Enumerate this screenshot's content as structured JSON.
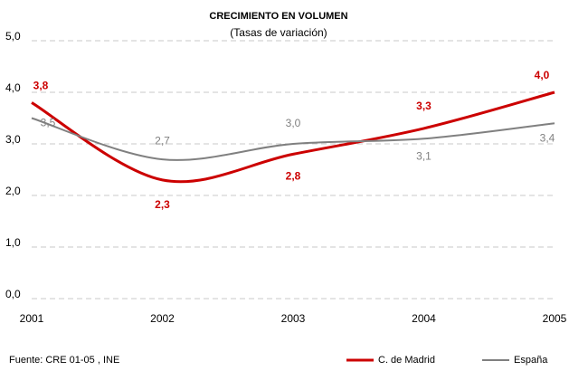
{
  "chart_data": {
    "type": "line",
    "title": "CRECIMIENTO EN VOLUMEN",
    "subtitle": "(Tasas de variación)",
    "x": [
      2001,
      2002,
      2003,
      2004,
      2005
    ],
    "series": [
      {
        "name": "C. de Madrid",
        "color": "#cc0000",
        "values": [
          3.8,
          2.3,
          2.8,
          3.3,
          4.0
        ],
        "value_labels": [
          "3,8",
          "2,3",
          "2,8",
          "3,3",
          "4,0"
        ]
      },
      {
        "name": "España",
        "color": "#808080",
        "values": [
          3.5,
          2.7,
          3.0,
          3.1,
          3.4
        ],
        "value_labels": [
          "3,5",
          "2,7",
          "3,0",
          "3,1",
          "3,4"
        ]
      }
    ],
    "xlim": [
      2001,
      2005
    ],
    "xticks": [
      2001,
      2002,
      2003,
      2004,
      2005
    ],
    "ylim": [
      0,
      5
    ],
    "yticks": [
      {
        "value": 0,
        "label": "0,0"
      },
      {
        "value": 1,
        "label": "1,0"
      },
      {
        "value": 2,
        "label": "2,0"
      },
      {
        "value": 3,
        "label": "3,0"
      },
      {
        "value": 4,
        "label": "4,0"
      },
      {
        "value": 5,
        "label": "5,0"
      }
    ],
    "grid": true,
    "legend": "bottom-right",
    "source": "Fuente: CRE 01-05 , INE"
  }
}
